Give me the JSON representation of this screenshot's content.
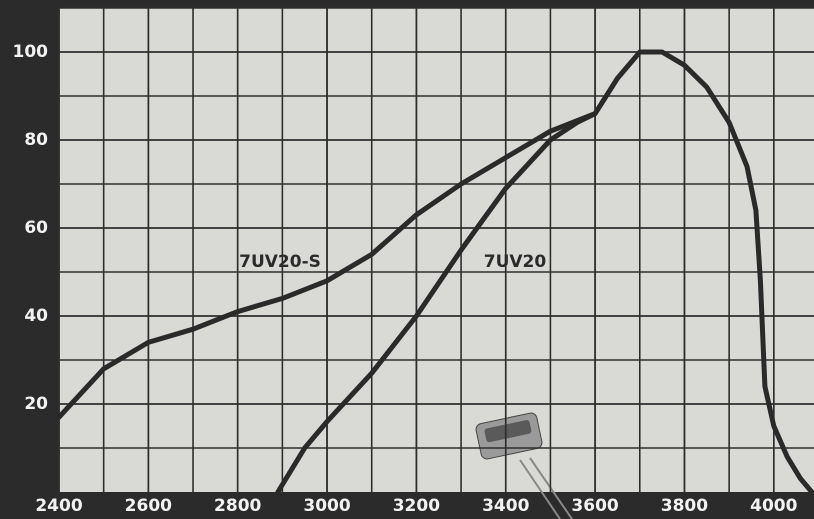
{
  "chart_data": {
    "type": "line",
    "series": [
      {
        "name": "7UV20-S",
        "color": "#2a2a2a",
        "x": [
          2400,
          2500,
          2600,
          2700,
          2800,
          2900,
          3000,
          3100,
          3200,
          3300,
          3400,
          3500,
          3600,
          3650,
          3700,
          3750,
          3800,
          3850,
          3900,
          3940,
          3960,
          3970,
          3980,
          4000,
          4030,
          4060,
          4085
        ],
        "values": [
          17,
          28,
          34,
          37,
          41,
          44,
          48,
          54,
          63,
          70,
          76,
          82,
          86,
          94,
          100,
          100,
          97,
          92,
          84,
          74,
          64,
          48,
          24,
          15,
          8,
          3,
          0
        ]
      },
      {
        "name": "7UV20",
        "color": "#2a2a2a",
        "x": [
          2890,
          2950,
          3000,
          3100,
          3200,
          3300,
          3400,
          3500,
          3560,
          3600
        ],
        "values": [
          0,
          10,
          16,
          27,
          40,
          55,
          69,
          80,
          84,
          86
        ]
      }
    ],
    "xlim": [
      2400,
      4090
    ],
    "ylim": [
      0,
      110
    ],
    "xticks": [
      2400,
      2600,
      2800,
      3000,
      3200,
      3400,
      3600,
      3800,
      4000
    ],
    "yticks": [
      20,
      40,
      60,
      80,
      100
    ],
    "grid": true
  }
}
